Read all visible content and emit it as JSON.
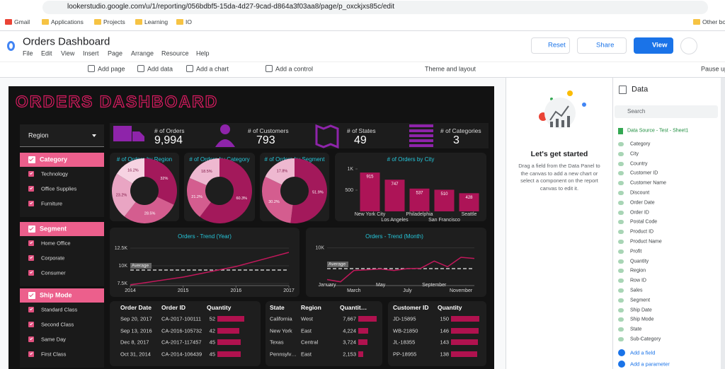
{
  "browser": {
    "url": "lookerstudio.google.com/u/1/reporting/056bdbf5-15da-4d27-9cad-d864a3f03aa8/page/p_oxckjxs85c/edit",
    "bookmarks": [
      "Gmail",
      "Applications",
      "Projects",
      "Learning",
      "IO",
      "Other bo"
    ]
  },
  "app": {
    "title": "Orders Dashboard",
    "menu": [
      "File",
      "Edit",
      "View",
      "Insert",
      "Page",
      "Arrange",
      "Resource",
      "Help"
    ],
    "buttons": {
      "reset": "Reset",
      "share": "Share",
      "view": "View"
    }
  },
  "toolbar": [
    "Add page",
    "Add data",
    "Add a chart",
    "Add a control",
    "Theme and layout",
    "Pause upd"
  ],
  "dashboard": {
    "title": "ORDERS DASHBOARD",
    "region_filter": "Region",
    "filters": [
      {
        "title": "Category",
        "items": [
          "Technology",
          "Office Supplies",
          "Furniture"
        ]
      },
      {
        "title": "Segment",
        "items": [
          "Home Office",
          "Corporate",
          "Consumer"
        ]
      },
      {
        "title": "Ship Mode",
        "items": [
          "Standard Class",
          "Second Class",
          "Same Day",
          "First Class"
        ]
      }
    ],
    "kpis": [
      {
        "label": "# of Orders",
        "value": "9,994"
      },
      {
        "label": "# of Customers",
        "value": "793"
      },
      {
        "label": "# of States",
        "value": "49"
      },
      {
        "label": "# of Categories",
        "value": "3"
      }
    ],
    "tables": [
      {
        "columns": [
          "Order Date",
          "Order ID",
          "Quantity"
        ],
        "rows": [
          [
            "Sep 20, 2017",
            "CA-2017-100111",
            "52"
          ],
          [
            "Sep 13, 2016",
            "CA-2016-105732",
            "42"
          ],
          [
            "Dec 8, 2017",
            "CA-2017-117457",
            "45"
          ],
          [
            "Oct 31, 2014",
            "CA-2014-106439",
            "45"
          ]
        ],
        "bar_values": [
          52,
          42,
          45,
          45
        ],
        "bar_color": "#b0124f"
      },
      {
        "columns": [
          "State",
          "Region",
          "Quantit…"
        ],
        "rows": [
          [
            "California",
            "West",
            "7,667"
          ],
          [
            "New York",
            "East",
            "4,224"
          ],
          [
            "Texas",
            "Central",
            "3,724"
          ],
          [
            "Pennsylv…",
            "East",
            "2,153"
          ]
        ],
        "bar_values": [
          7667,
          4224,
          3724,
          2153
        ],
        "bar_color": "#b0124f"
      },
      {
        "columns": [
          "Customer ID",
          "Quantity"
        ],
        "rows": [
          [
            "JD-15895",
            "150"
          ],
          [
            "WB-21850",
            "146"
          ],
          [
            "JL-18355",
            "143"
          ],
          [
            "PP-18955",
            "138"
          ]
        ],
        "bar_values": [
          150,
          146,
          143,
          138
        ],
        "bar_color": "#b0124f"
      }
    ]
  },
  "chart_data": [
    {
      "type": "pie",
      "title": "# of Orders by Region",
      "values": [
        32,
        28.5,
        23.2,
        16.2
      ],
      "value_labels": [
        "32%",
        "28.5%",
        "23.2%",
        "16.2%"
      ],
      "colors": [
        "#a3195b",
        "#d45d8f",
        "#e9a5c3",
        "#f6d3e2"
      ]
    },
    {
      "type": "pie",
      "title": "# of Orders by Category",
      "values": [
        60.3,
        21.2,
        18.5
      ],
      "value_labels": [
        "60.3%",
        "21.2%",
        "18.5%"
      ],
      "colors": [
        "#a3195b",
        "#d45d8f",
        "#eeb8d0"
      ]
    },
    {
      "type": "pie",
      "title": "# of Orders by Segment",
      "values": [
        51.9,
        30.2,
        17.8
      ],
      "value_labels": [
        "51.9%",
        "30.2%",
        "17.8%"
      ],
      "colors": [
        "#a3195b",
        "#d45d8f",
        "#eeb8d0"
      ]
    },
    {
      "type": "bar",
      "title": "# of Orders by City",
      "categories": [
        "New York City",
        "Los Angeles",
        "Philadelphia",
        "San Francisco",
        "Seattle"
      ],
      "values": [
        915,
        747,
        537,
        510,
        428
      ],
      "color": "#ad1457",
      "ylim": [
        0,
        1050
      ],
      "yticks": [
        500,
        {
          "value": 1000,
          "label": "1K"
        }
      ]
    },
    {
      "type": "line",
      "title": "Orders - Trend (Year)",
      "x": [
        2014,
        2015,
        2016,
        2017
      ],
      "values": [
        7300,
        8400,
        9900,
        11900
      ],
      "color": "#c2185b",
      "xlim": [
        2014,
        2017
      ],
      "xticks": [
        2014,
        2015,
        2016,
        2017
      ],
      "ylim": [
        7200,
        12800
      ],
      "yticks": [
        {
          "value": 7500,
          "label": "7.5K"
        },
        {
          "value": 10000,
          "label": "10K"
        },
        {
          "value": 12500,
          "label": "12.5K"
        }
      ],
      "reference": {
        "label": "Average",
        "value": 9400
      }
    },
    {
      "type": "line",
      "title": "Orders - Trend (Month)",
      "categories": [
        "January",
        null,
        "March",
        null,
        "May",
        null,
        "July",
        null,
        "September",
        null,
        "November",
        null
      ],
      "values": [
        1600,
        1000,
        4000,
        4200,
        4400,
        4000,
        4500,
        4600,
        6500,
        5000,
        7500,
        7200
      ],
      "color": "#c2185b",
      "ylim": [
        0,
        10500
      ],
      "yticks": [
        {
          "value": 10000,
          "label": "10K"
        }
      ],
      "reference": {
        "label": "Average",
        "value": 4500
      }
    }
  ],
  "start_panel": {
    "title": "Let's get started",
    "text": "Drag a field from the Data Panel to the canvas to add a new chart or select a component on the report canvas to edit it."
  },
  "data_panel": {
    "title": "Data",
    "search": "Search",
    "source": "Data Source - Test - Sheet1",
    "fields": [
      "Category",
      "City",
      "Country",
      "Customer ID",
      "Customer Name",
      "Discount",
      "Order Date",
      "Order ID",
      "Postal Code",
      "Product ID",
      "Product Name",
      "Profit",
      "Quantity",
      "Region",
      "Row ID",
      "Sales",
      "Segment",
      "Ship Date",
      "Ship Mode",
      "State",
      "Sub-Category"
    ],
    "actions": [
      "Add a field",
      "Add a parameter"
    ]
  }
}
